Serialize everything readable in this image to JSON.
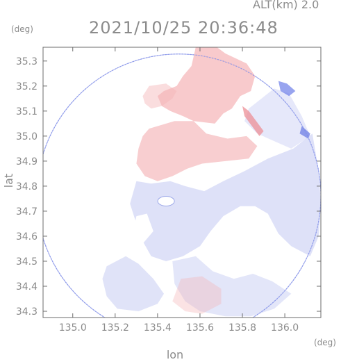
{
  "chart_data": {
    "type": "heatmap",
    "title": "2021/10/25 20:36:48",
    "subtitle": "ALT(km) 2.0",
    "xlabel": "lon",
    "ylabel": "lat",
    "x_unit": "(deg)",
    "y_unit": "(deg)",
    "xlim": [
      134.86,
      136.17
    ],
    "ylim": [
      34.275,
      35.355
    ],
    "x_ticks": [
      135.0,
      135.2,
      135.4,
      135.6,
      135.8,
      136.0
    ],
    "y_ticks": [
      34.3,
      34.4,
      34.5,
      34.6,
      34.7,
      34.8,
      34.9,
      35.0,
      35.1,
      35.2,
      35.3
    ],
    "x_tick_labels": [
      "135.0",
      "135.2",
      "135.4",
      "135.6",
      "135.8",
      "136.0"
    ],
    "y_tick_labels": [
      "34.3",
      "34.4",
      "34.5",
      "34.6",
      "34.7",
      "34.8",
      "34.9",
      "35.0",
      "35.1",
      "35.2",
      "35.3"
    ],
    "grid": false,
    "colors": {
      "positive": "#f5b5b8",
      "negative": "#b9c0f0",
      "text": "#8b8b8b",
      "frame": "#6b6b6b"
    },
    "radar_center": [
      135.5,
      34.76
    ],
    "radar_radius_lon": 0.67
  }
}
